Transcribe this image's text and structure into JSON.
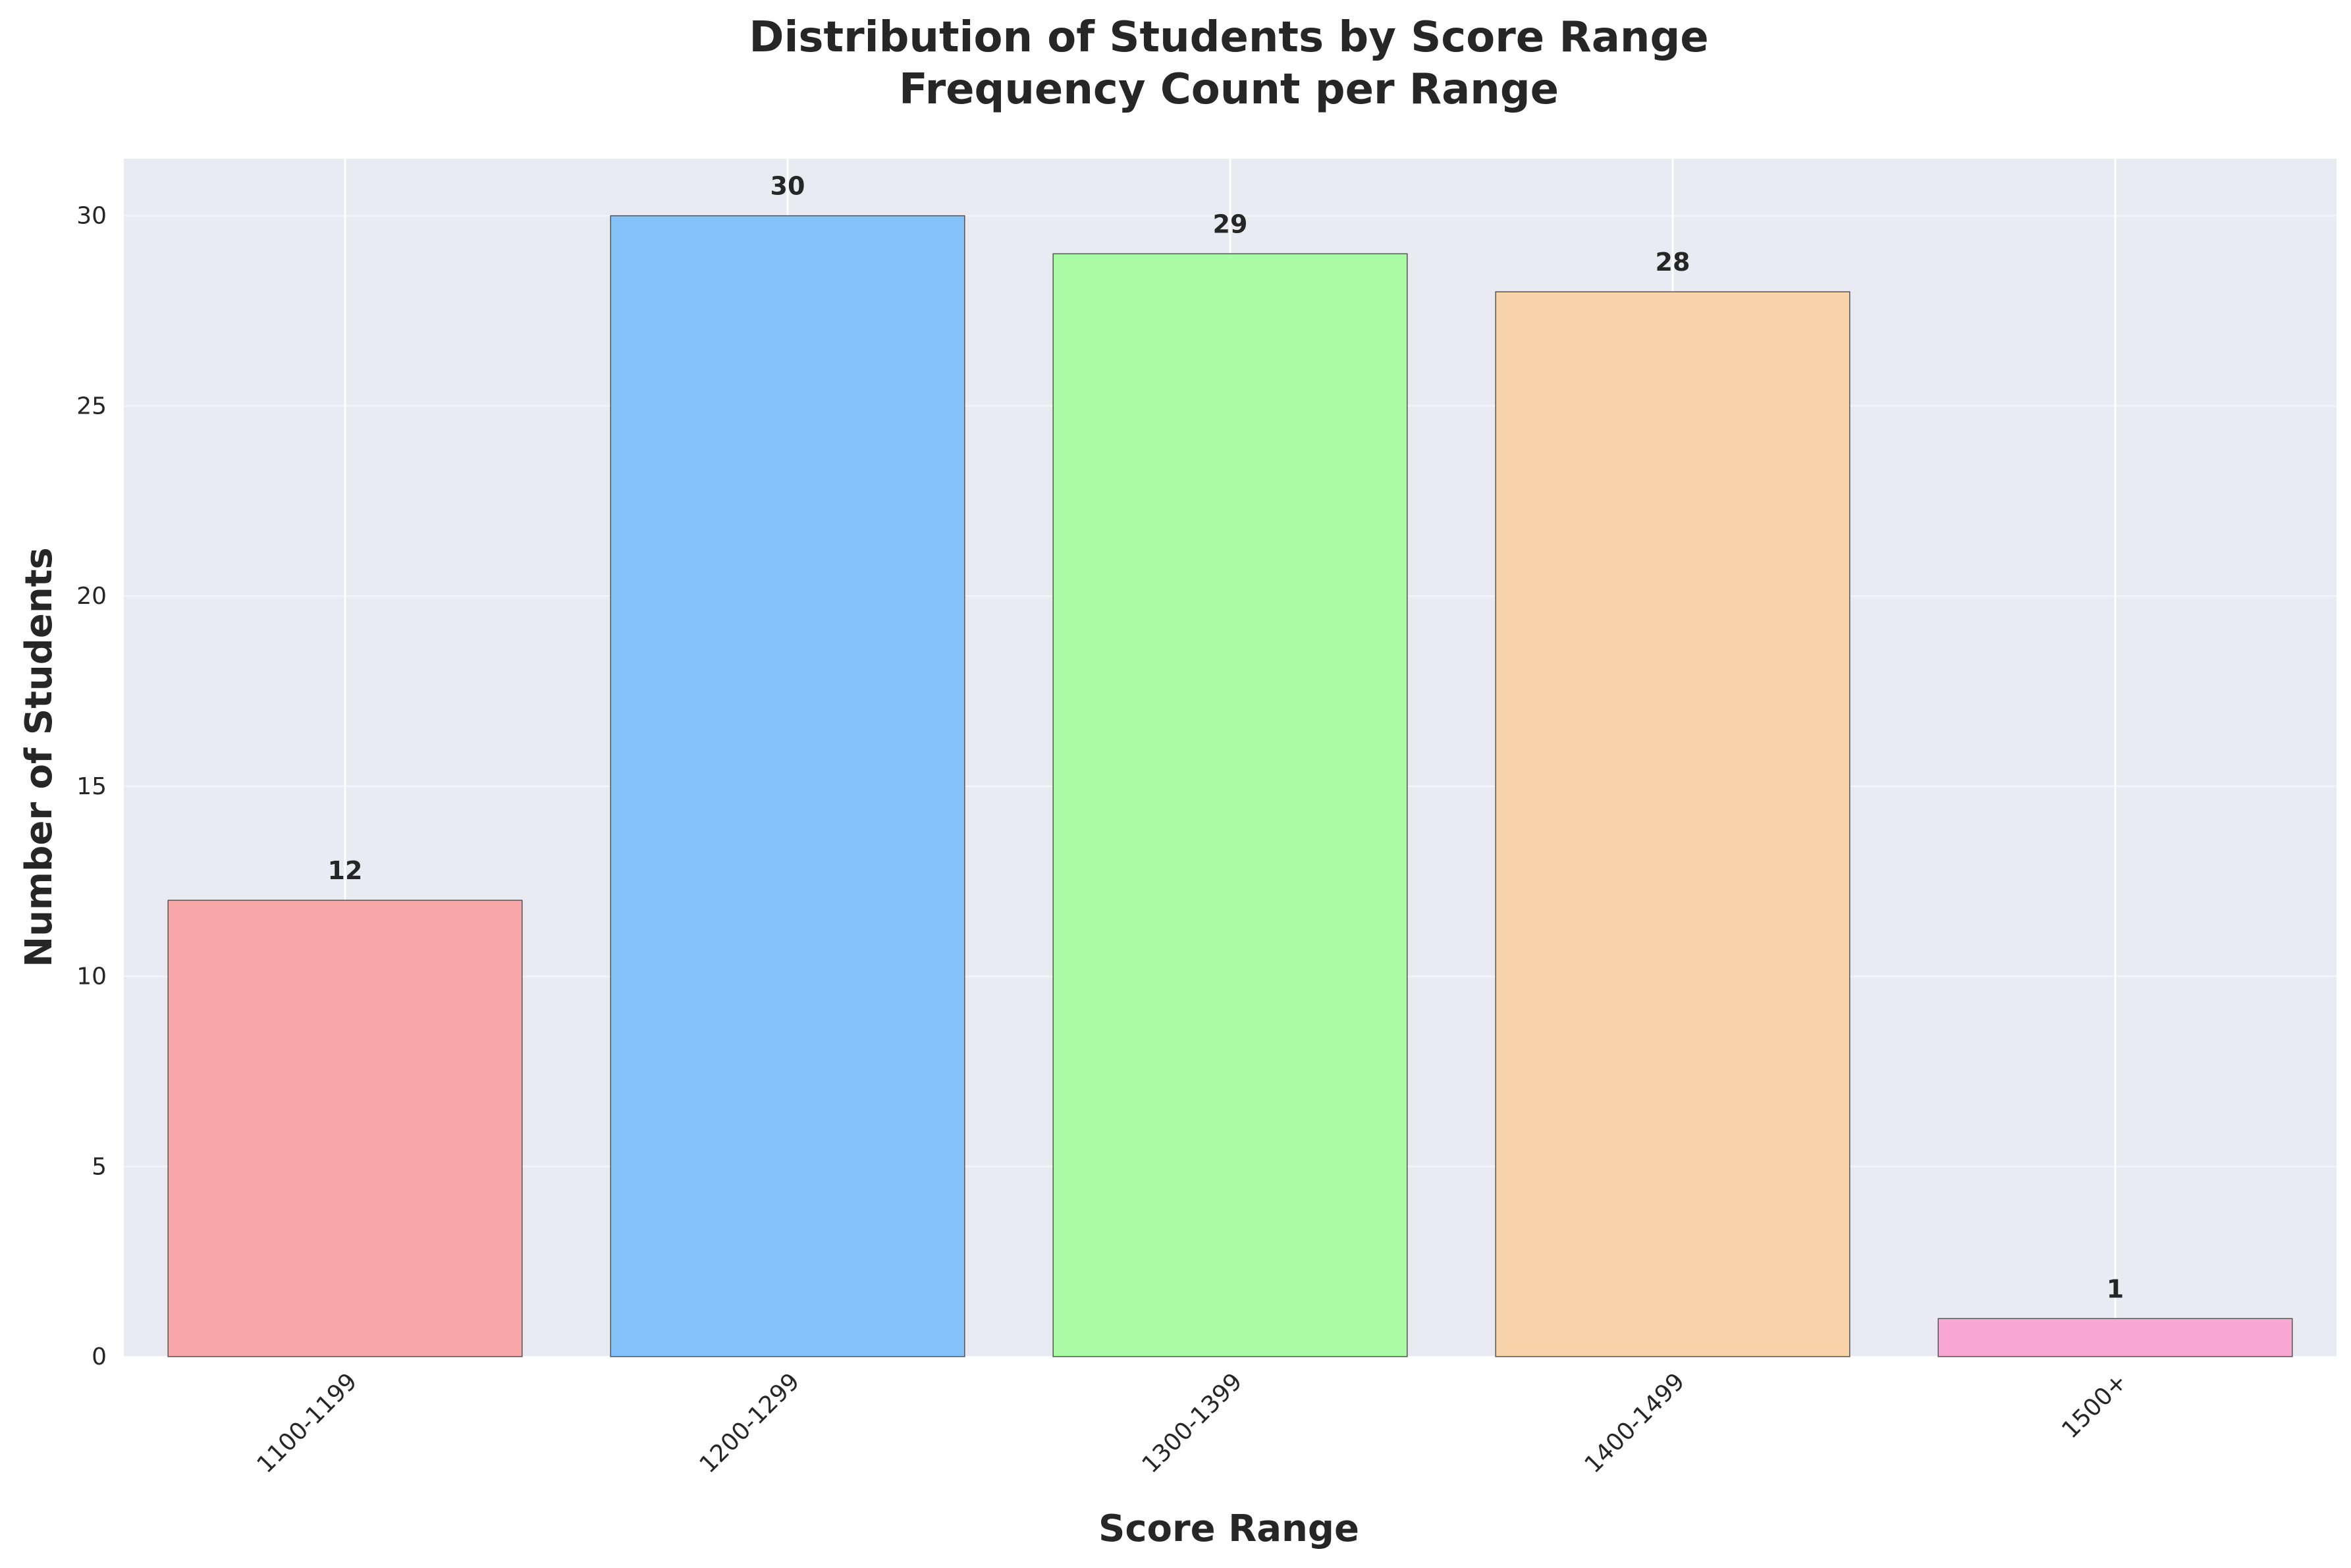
{
  "chart_data": {
    "type": "bar",
    "title": "Distribution of Students by Score Range",
    "subtitle": "Frequency Count per Range",
    "xlabel": "Score Range",
    "ylabel": "Number of Students",
    "categories": [
      "1100-1199",
      "1200-1299",
      "1300-1399",
      "1400-1499",
      "1500+"
    ],
    "values": [
      12,
      30,
      29,
      28,
      1
    ],
    "colors": [
      "#f9a8aa",
      "#84c1f9",
      "#abfaa6",
      "#f9d3aa",
      "#f9a8d4"
    ],
    "value_labels": [
      "12",
      "30",
      "29",
      "28",
      "1"
    ],
    "yticks": [
      0,
      5,
      10,
      15,
      20,
      25,
      30
    ],
    "ytick_labels": [
      "0",
      "5",
      "10",
      "15",
      "20",
      "25",
      "30"
    ],
    "ylim": [
      0,
      31.5
    ],
    "grid": true,
    "legend": false,
    "background": "#eaeaf2"
  }
}
